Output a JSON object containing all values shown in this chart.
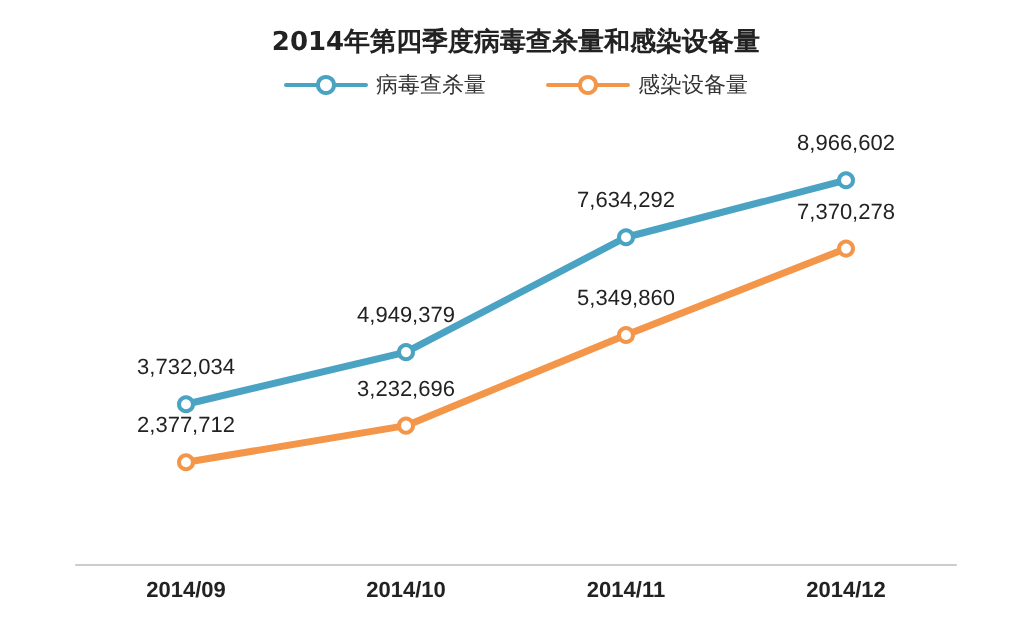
{
  "chart_data": {
    "type": "line",
    "title": "2014年第四季度病毒查杀量和感染设备量",
    "categories": [
      "2014/09",
      "2014/10",
      "2014/11",
      "2014/12"
    ],
    "series": [
      {
        "name": "病毒查杀量",
        "color": "#4ba3c3",
        "values": [
          3732034,
          4949379,
          7634292,
          8966602
        ],
        "value_labels": [
          "3,732,034",
          "4,949,379",
          "7,634,292",
          "8,966,602"
        ]
      },
      {
        "name": "感染设备量",
        "color": "#f4964a",
        "values": [
          2377712,
          3232696,
          5349860,
          7370278
        ],
        "value_labels": [
          "2,377,712",
          "3,232,696",
          "5,349,860",
          "7,370,278"
        ]
      }
    ],
    "legend": "top",
    "marker": "circle",
    "line_style": "solid",
    "grid": false
  }
}
